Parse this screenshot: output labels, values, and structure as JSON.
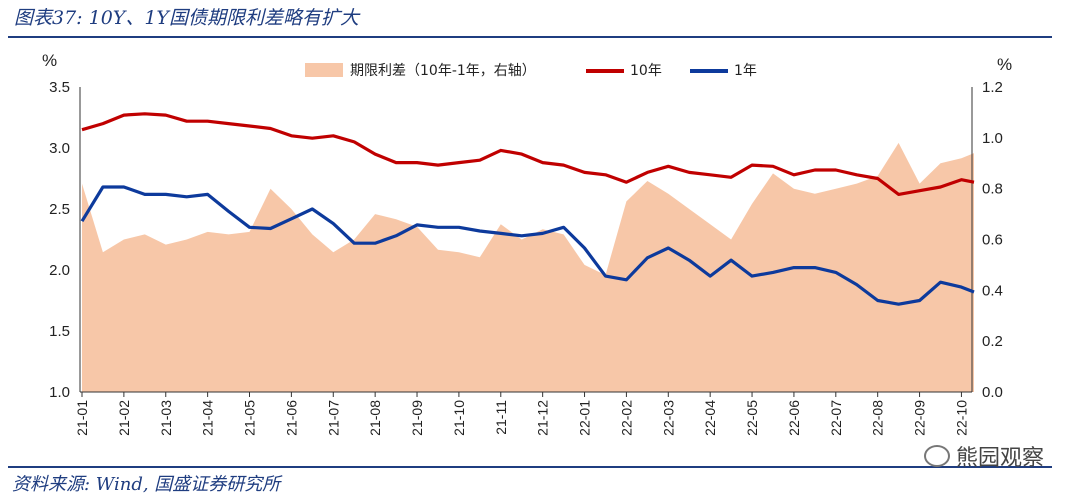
{
  "title": "图表37: 10Y、1Y国债期限利差略有扩大",
  "source": "资料来源: Wind, 国盛证券研究所",
  "watermark": "熊园观察",
  "colors": {
    "spread": "#f7c7a8",
    "y10": "#c00000",
    "y1": "#0d3a9c",
    "brand": "#1f3d80"
  },
  "chart_data": {
    "type": "line",
    "title": "10Y、1Y国债期限利差略有扩大",
    "ylabel_left": "%",
    "ylabel_right": "%",
    "ylim_left": [
      1.0,
      3.5
    ],
    "ylim_right": [
      0.0,
      1.2
    ],
    "yticks_left": [
      "1.0",
      "1.5",
      "2.0",
      "2.5",
      "3.0",
      "3.5"
    ],
    "yticks_right": [
      "0.0",
      "0.2",
      "0.4",
      "0.6",
      "0.8",
      "1.0",
      "1.2"
    ],
    "categories": [
      "21-01",
      "21-02",
      "21-03",
      "21-04",
      "21-05",
      "21-06",
      "21-07",
      "21-08",
      "21-09",
      "21-10",
      "21-11",
      "21-12",
      "22-01",
      "22-02",
      "22-03",
      "22-04",
      "22-05",
      "22-06",
      "22-07",
      "22-08",
      "22-09",
      "22-10"
    ],
    "legend": [
      "期限利差（10年-1年，右轴）",
      "10年",
      "1年"
    ],
    "series": [
      {
        "name": "期限利差（10年-1年，右轴）",
        "kind": "area",
        "axis": "right",
        "x": [
          0,
          0.5,
          1,
          1.5,
          2,
          2.5,
          3,
          3.5,
          4,
          4.5,
          5,
          5.5,
          6,
          6.5,
          7,
          7.5,
          8,
          8.5,
          9,
          9.5,
          10,
          10.5,
          11,
          11.5,
          12,
          12.5,
          13,
          13.5,
          14,
          14.5,
          15,
          15.5,
          16,
          16.5,
          17,
          17.5,
          18,
          18.5,
          19,
          19.5,
          20,
          20.5,
          21,
          21.3
        ],
        "values": [
          0.82,
          0.55,
          0.6,
          0.62,
          0.58,
          0.6,
          0.63,
          0.62,
          0.63,
          0.8,
          0.72,
          0.62,
          0.55,
          0.6,
          0.7,
          0.68,
          0.65,
          0.56,
          0.55,
          0.53,
          0.66,
          0.6,
          0.64,
          0.62,
          0.5,
          0.46,
          0.75,
          0.83,
          0.78,
          0.72,
          0.66,
          0.6,
          0.74,
          0.86,
          0.8,
          0.78,
          0.8,
          0.82,
          0.85,
          0.98,
          0.82,
          0.9,
          0.92,
          0.94
        ]
      },
      {
        "name": "10年",
        "kind": "line",
        "axis": "left",
        "x": [
          0,
          0.5,
          1,
          1.5,
          2,
          2.5,
          3,
          3.5,
          4,
          4.5,
          5,
          5.5,
          6,
          6.5,
          7,
          7.5,
          8,
          8.5,
          9,
          9.5,
          10,
          10.5,
          11,
          11.5,
          12,
          12.5,
          13,
          13.5,
          14,
          14.5,
          15,
          15.5,
          16,
          16.5,
          17,
          17.5,
          18,
          18.5,
          19,
          19.5,
          20,
          20.5,
          21,
          21.3
        ],
        "values": [
          3.15,
          3.2,
          3.27,
          3.28,
          3.27,
          3.22,
          3.22,
          3.2,
          3.18,
          3.16,
          3.1,
          3.08,
          3.1,
          3.05,
          2.95,
          2.88,
          2.88,
          2.86,
          2.88,
          2.9,
          2.98,
          2.95,
          2.88,
          2.86,
          2.8,
          2.78,
          2.72,
          2.8,
          2.85,
          2.8,
          2.78,
          2.76,
          2.86,
          2.85,
          2.78,
          2.82,
          2.82,
          2.78,
          2.75,
          2.62,
          2.65,
          2.68,
          2.74,
          2.72
        ]
      },
      {
        "name": "1年",
        "kind": "line",
        "axis": "left",
        "x": [
          0,
          0.5,
          1,
          1.5,
          2,
          2.5,
          3,
          3.5,
          4,
          4.5,
          5,
          5.5,
          6,
          6.5,
          7,
          7.5,
          8,
          8.5,
          9,
          9.5,
          10,
          10.5,
          11,
          11.5,
          12,
          12.5,
          13,
          13.5,
          14,
          14.5,
          15,
          15.5,
          16,
          16.5,
          17,
          17.5,
          18,
          18.5,
          19,
          19.5,
          20,
          20.5,
          21,
          21.3
        ],
        "values": [
          2.4,
          2.68,
          2.68,
          2.62,
          2.62,
          2.6,
          2.62,
          2.48,
          2.35,
          2.34,
          2.42,
          2.5,
          2.38,
          2.22,
          2.22,
          2.28,
          2.37,
          2.35,
          2.35,
          2.32,
          2.3,
          2.28,
          2.3,
          2.35,
          2.18,
          1.95,
          1.92,
          2.1,
          2.18,
          2.08,
          1.95,
          2.08,
          1.95,
          1.98,
          2.02,
          2.02,
          1.98,
          1.88,
          1.75,
          1.72,
          1.75,
          1.9,
          1.86,
          1.82
        ]
      }
    ]
  }
}
